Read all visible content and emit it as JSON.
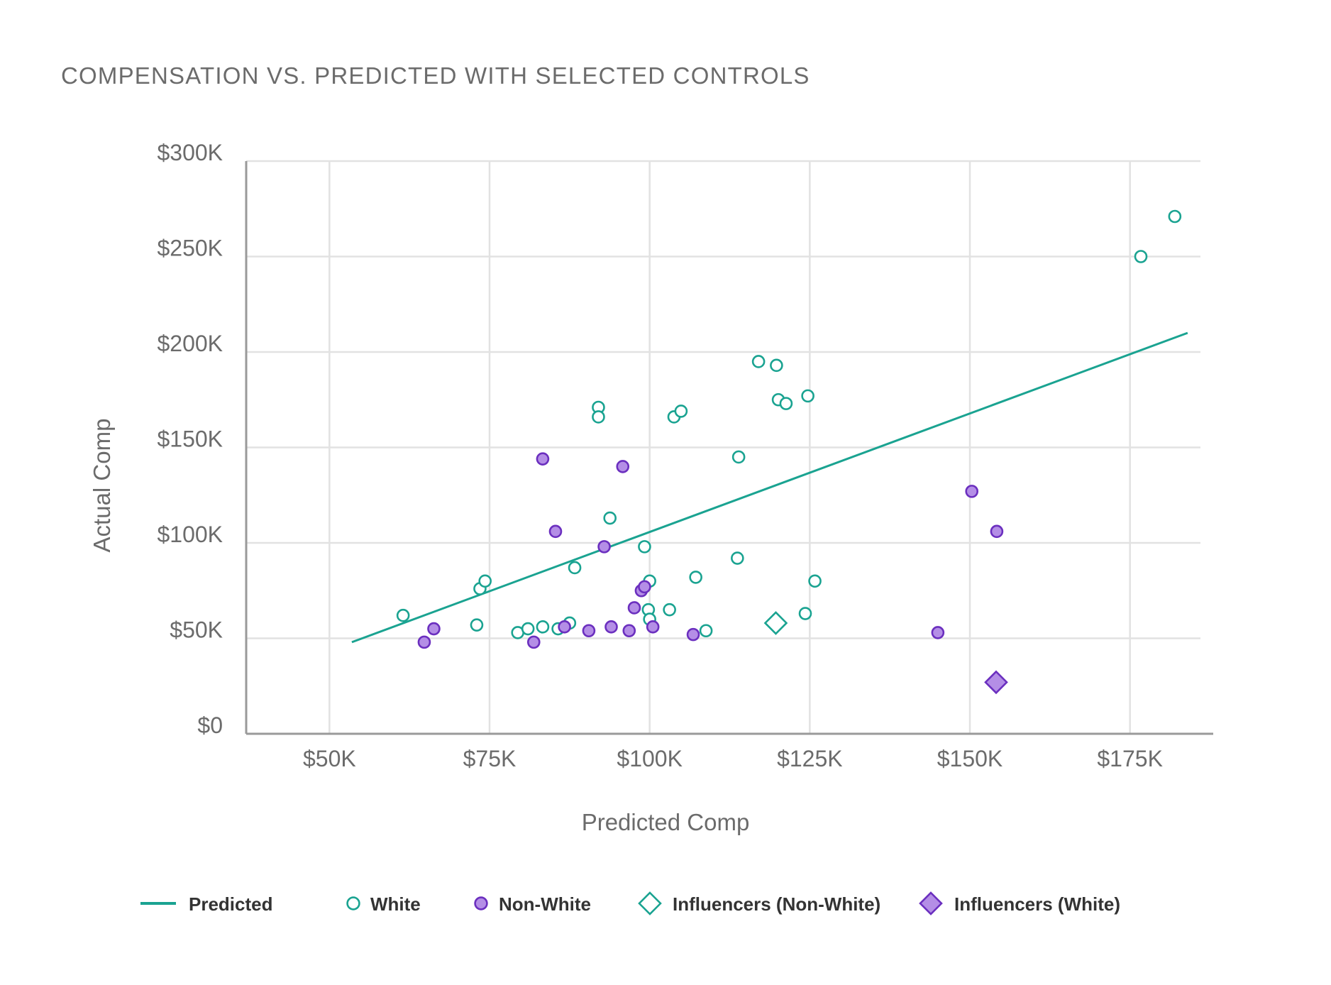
{
  "colors": {
    "teal": "#1aa391",
    "purple": "#6b2fbf",
    "purple_fill": "#b48ee6",
    "grid": "#e2e2e2",
    "axis": "#9a9a9a",
    "text": "#6b6b6b"
  },
  "chart_data": {
    "type": "scatter",
    "title": "COMPENSATION VS. PREDICTED WITH SELECTED CONTROLS",
    "xlabel": "Predicted Comp",
    "ylabel": "Actual Comp",
    "xlim": [
      37000,
      188000
    ],
    "ylim": [
      0,
      300000
    ],
    "x_ticks": [
      {
        "value": 50000,
        "label": "$50K"
      },
      {
        "value": 75000,
        "label": "$75K"
      },
      {
        "value": 100000,
        "label": "$100K"
      },
      {
        "value": 125000,
        "label": "$125K"
      },
      {
        "value": 150000,
        "label": "$150K"
      },
      {
        "value": 175000,
        "label": "$175K"
      }
    ],
    "y_ticks": [
      {
        "value": 0,
        "label": "$0"
      },
      {
        "value": 50000,
        "label": "$50K"
      },
      {
        "value": 100000,
        "label": "$100K"
      },
      {
        "value": 150000,
        "label": "$150K"
      },
      {
        "value": 200000,
        "label": "$200K"
      },
      {
        "value": 250000,
        "label": "$250K"
      },
      {
        "value": 300000,
        "label": "$300K"
      }
    ],
    "grid": true,
    "legend_position": "bottom",
    "series": [
      {
        "name": "Predicted",
        "kind": "line",
        "color": "#1aa391",
        "points": [
          [
            53500,
            48000
          ],
          [
            184000,
            210000
          ]
        ]
      },
      {
        "name": "White",
        "kind": "circle-open",
        "color": "#1aa391",
        "points": [
          [
            61500,
            62000
          ],
          [
            73000,
            57000
          ],
          [
            73500,
            76000
          ],
          [
            74300,
            80000
          ],
          [
            79400,
            53000
          ],
          [
            81000,
            55000
          ],
          [
            83300,
            56000
          ],
          [
            85700,
            55000
          ],
          [
            87500,
            58000
          ],
          [
            88300,
            87000
          ],
          [
            92000,
            171000
          ],
          [
            92000,
            166000
          ],
          [
            93800,
            113000
          ],
          [
            99200,
            98000
          ],
          [
            99800,
            65000
          ],
          [
            100000,
            80000
          ],
          [
            100000,
            60000
          ],
          [
            103100,
            65000
          ],
          [
            103800,
            166000
          ],
          [
            104900,
            169000
          ],
          [
            107200,
            82000
          ],
          [
            108800,
            54000
          ],
          [
            113700,
            92000
          ],
          [
            113900,
            145000
          ],
          [
            117000,
            195000
          ],
          [
            119800,
            193000
          ],
          [
            120100,
            175000
          ],
          [
            121300,
            173000
          ],
          [
            124300,
            63000
          ],
          [
            124700,
            177000
          ],
          [
            125800,
            80000
          ],
          [
            176700,
            250000
          ],
          [
            182000,
            271000
          ]
        ]
      },
      {
        "name": "Non-White",
        "kind": "circle-filled",
        "color": "#6b2fbf",
        "points": [
          [
            64800,
            48000
          ],
          [
            66300,
            55000
          ],
          [
            81900,
            48000
          ],
          [
            83300,
            144000
          ],
          [
            85300,
            106000
          ],
          [
            86700,
            56000
          ],
          [
            90500,
            54000
          ],
          [
            92900,
            98000
          ],
          [
            94000,
            56000
          ],
          [
            95800,
            140000
          ],
          [
            96800,
            54000
          ],
          [
            97600,
            66000
          ],
          [
            98700,
            75000
          ],
          [
            99200,
            77000
          ],
          [
            100500,
            56000
          ],
          [
            106800,
            52000
          ],
          [
            145000,
            53000
          ],
          [
            150300,
            127000
          ],
          [
            154200,
            106000
          ]
        ]
      },
      {
        "name": "Influencers (Non-White)",
        "kind": "diamond-open",
        "color": "#1aa391",
        "points": [
          [
            119700,
            58000
          ]
        ]
      },
      {
        "name": "Influencers (White)",
        "kind": "diamond-filled",
        "color": "#6b2fbf",
        "points": [
          [
            154100,
            27000
          ]
        ]
      }
    ]
  }
}
